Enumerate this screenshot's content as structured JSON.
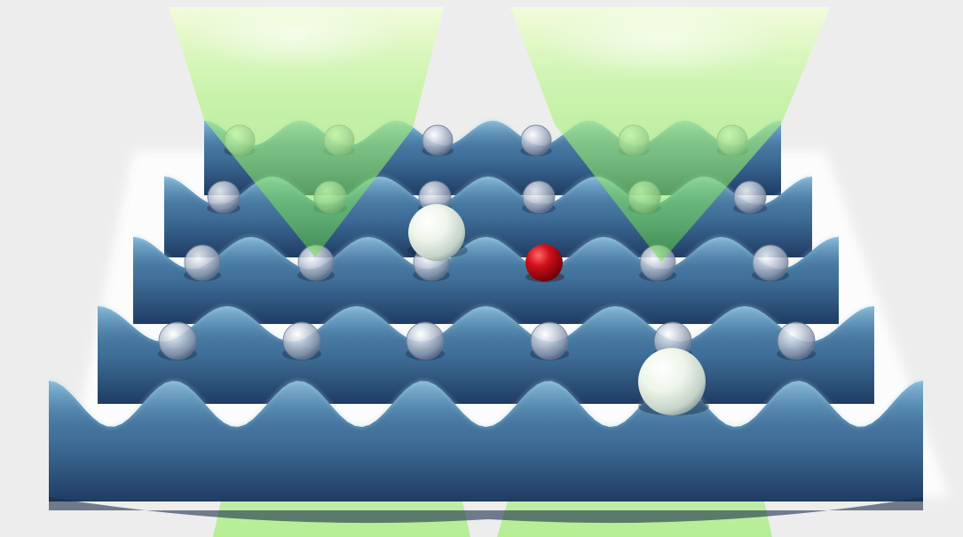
{
  "scene": {
    "background_color": "#ededed",
    "lattice_color_light": "#5a8fb4",
    "lattice_color_mid": "#3f6e98",
    "lattice_color_dark": "#1f3c63",
    "beam_color": "#7ef25a",
    "beam_core_color": "#f4ffd8",
    "small_atom_color": "#aeb6c8",
    "large_atom_color": "#e9f0e4",
    "marked_atom_color": "#c0101a",
    "rows": 4,
    "atoms_per_row": 6,
    "beam_count": 2,
    "large_atom_count": 2,
    "marked_atom_count": 1
  }
}
